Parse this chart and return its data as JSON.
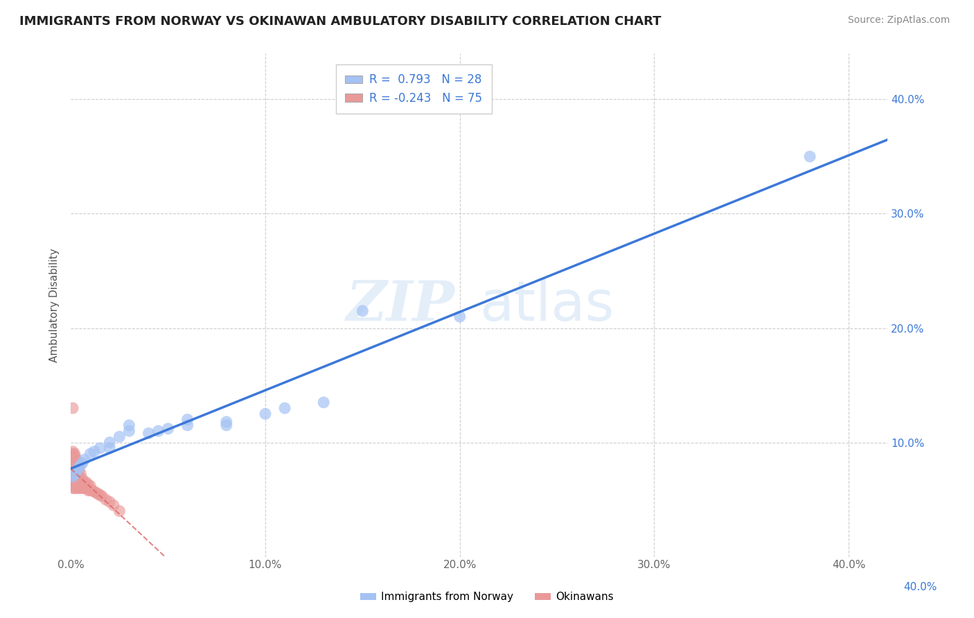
{
  "title": "IMMIGRANTS FROM NORWAY VS OKINAWAN AMBULATORY DISABILITY CORRELATION CHART",
  "source": "Source: ZipAtlas.com",
  "ylabel": "Ambulatory Disability",
  "xlim": [
    0.0,
    0.42
  ],
  "ylim": [
    0.0,
    0.44
  ],
  "xtick_labels": [
    "0.0%",
    "",
    "10.0%",
    "",
    "20.0%",
    "",
    "30.0%",
    "",
    "40.0%"
  ],
  "xtick_vals": [
    0.0,
    0.05,
    0.1,
    0.15,
    0.2,
    0.25,
    0.3,
    0.35,
    0.4
  ],
  "ytick_vals": [
    0.1,
    0.2,
    0.3,
    0.4
  ],
  "right_ytick_labels": [
    "10.0%",
    "20.0%",
    "30.0%",
    "40.0%"
  ],
  "right_ytick_vals": [
    0.1,
    0.2,
    0.3,
    0.4
  ],
  "bottom_xtick_right_label": "40.0%",
  "legend_r_blue": "0.793",
  "legend_n_blue": "28",
  "legend_r_pink": "-0.243",
  "legend_n_pink": "75",
  "blue_color": "#a4c2f4",
  "pink_color": "#ea9999",
  "blue_line_color": "#3c78d8",
  "pink_line_color": "#e06666",
  "background_color": "#ffffff",
  "grid_color": "#cccccc",
  "norway_x": [
    0.001,
    0.002,
    0.003,
    0.004,
    0.005,
    0.006,
    0.007,
    0.01,
    0.012,
    0.015,
    0.02,
    0.025,
    0.03,
    0.04,
    0.05,
    0.06,
    0.08,
    0.1,
    0.11,
    0.13,
    0.15,
    0.02,
    0.03,
    0.045,
    0.06,
    0.08,
    0.2,
    0.38
  ],
  "norway_y": [
    0.07,
    0.072,
    0.075,
    0.078,
    0.08,
    0.082,
    0.085,
    0.09,
    0.092,
    0.095,
    0.1,
    0.105,
    0.11,
    0.108,
    0.112,
    0.115,
    0.118,
    0.125,
    0.13,
    0.135,
    0.215,
    0.095,
    0.115,
    0.11,
    0.12,
    0.115,
    0.21,
    0.35
  ],
  "okinawa_x": [
    0.001,
    0.001,
    0.001,
    0.001,
    0.001,
    0.001,
    0.001,
    0.001,
    0.001,
    0.001,
    0.001,
    0.001,
    0.001,
    0.001,
    0.001,
    0.001,
    0.001,
    0.001,
    0.001,
    0.001,
    0.002,
    0.002,
    0.002,
    0.002,
    0.002,
    0.002,
    0.002,
    0.002,
    0.002,
    0.002,
    0.002,
    0.002,
    0.002,
    0.002,
    0.002,
    0.003,
    0.003,
    0.003,
    0.003,
    0.003,
    0.003,
    0.003,
    0.003,
    0.003,
    0.004,
    0.004,
    0.004,
    0.004,
    0.004,
    0.004,
    0.005,
    0.005,
    0.005,
    0.005,
    0.006,
    0.006,
    0.006,
    0.007,
    0.007,
    0.008,
    0.008,
    0.009,
    0.009,
    0.01,
    0.01,
    0.011,
    0.012,
    0.013,
    0.014,
    0.015,
    0.016,
    0.018,
    0.02,
    0.022,
    0.025
  ],
  "okinawa_y": [
    0.06,
    0.062,
    0.063,
    0.065,
    0.067,
    0.068,
    0.07,
    0.072,
    0.074,
    0.075,
    0.076,
    0.078,
    0.08,
    0.082,
    0.084,
    0.085,
    0.086,
    0.088,
    0.09,
    0.092,
    0.06,
    0.062,
    0.065,
    0.068,
    0.07,
    0.072,
    0.074,
    0.076,
    0.078,
    0.08,
    0.082,
    0.084,
    0.086,
    0.088,
    0.09,
    0.06,
    0.063,
    0.066,
    0.07,
    0.073,
    0.076,
    0.078,
    0.08,
    0.085,
    0.06,
    0.063,
    0.067,
    0.071,
    0.075,
    0.08,
    0.06,
    0.064,
    0.068,
    0.073,
    0.06,
    0.064,
    0.068,
    0.06,
    0.065,
    0.06,
    0.065,
    0.058,
    0.063,
    0.058,
    0.062,
    0.058,
    0.057,
    0.056,
    0.055,
    0.054,
    0.053,
    0.05,
    0.048,
    0.045,
    0.04
  ],
  "okinawa_outlier_x": [
    0.001
  ],
  "okinawa_outlier_y": [
    0.13
  ]
}
